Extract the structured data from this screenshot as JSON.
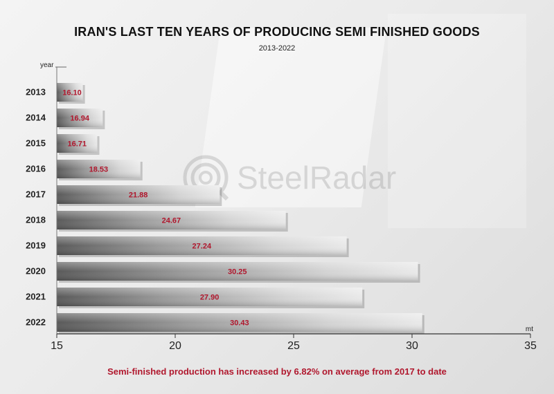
{
  "title": "IRAN'S LAST TEN YEARS OF PRODUCING SEMI FINISHED GOODS",
  "subtitle": "2013-2022",
  "watermark": "SteelRadar",
  "footer": "Semi-finished production has increased by 6.82% on average from 2017 to date",
  "colors": {
    "value_label": "#b0172d",
    "footer": "#b0172d"
  },
  "chart_data": {
    "type": "bar",
    "orientation": "horizontal",
    "title": "IRAN'S LAST TEN YEARS OF PRODUCING SEMI FINISHED GOODS",
    "subtitle": "2013-2022",
    "ylabel": "year",
    "xlabel": "mt",
    "xlim": [
      15,
      35
    ],
    "xticks": [
      15,
      20,
      25,
      30,
      35
    ],
    "categories": [
      "2013",
      "2014",
      "2015",
      "2016",
      "2017",
      "2018",
      "2019",
      "2020",
      "2021",
      "2022"
    ],
    "values": [
      16.1,
      16.94,
      16.71,
      18.53,
      21.88,
      24.67,
      27.24,
      30.25,
      27.9,
      30.43
    ],
    "value_labels": [
      "16.10",
      "16.94",
      "16.71",
      "18.53",
      "21.88",
      "24.67",
      "27.24",
      "30.25",
      "27.90",
      "30.43"
    ],
    "grid": false,
    "legend": "none"
  }
}
